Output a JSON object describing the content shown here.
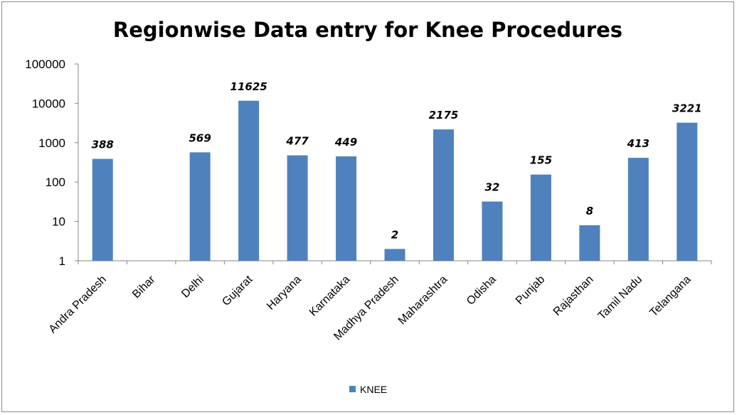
{
  "chart_data": {
    "type": "bar",
    "title": "Regionwise Data entry for Knee Procedures",
    "xlabel": "",
    "ylabel": "",
    "y_scale": "log",
    "ylim": [
      1,
      100000
    ],
    "y_ticks": [
      "1",
      "10",
      "100",
      "1000",
      "10000",
      "100000"
    ],
    "grid": false,
    "legend_position": "bottom",
    "categories": [
      "Andra Pradesh",
      "Bihar",
      "Delhi",
      "Gujarat",
      "Haryana",
      "Karnataka",
      "Madhya Pradesh",
      "Maharashtra",
      "Odisha",
      "Punjab",
      "Rajasthan",
      "Tamil Nadu",
      "Telangana"
    ],
    "series": [
      {
        "name": "KNEE",
        "color": "#4f81bd",
        "values": [
          388,
          null,
          569,
          11625,
          477,
          449,
          2,
          2175,
          32,
          155,
          8,
          413,
          3221
        ],
        "labels": [
          "388",
          "",
          "569",
          "11625",
          "477",
          "449",
          "2",
          "2175",
          "32",
          "155",
          "8",
          "413",
          "3221"
        ]
      }
    ]
  }
}
